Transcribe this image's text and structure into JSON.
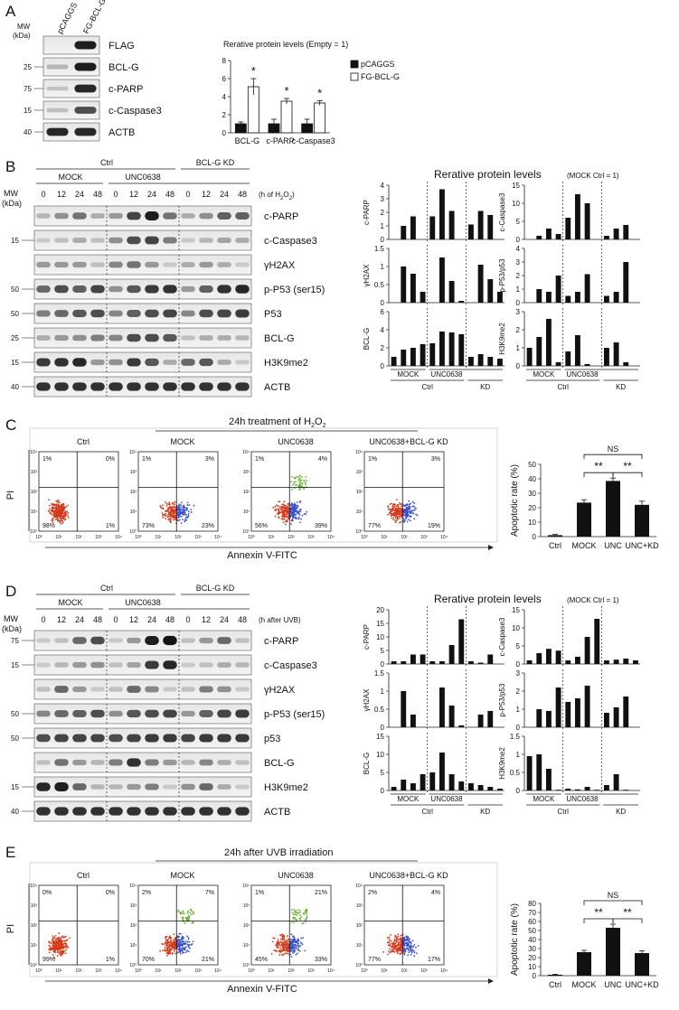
{
  "panels": {
    "A": {
      "letter": "A",
      "mw_label": "MW",
      "kda_label": "(kDa)",
      "lane_labels": [
        "pCAGGS",
        "FG-BCL-G"
      ],
      "blots": [
        {
          "mw": "",
          "label": "FLAG"
        },
        {
          "mw": "25",
          "label": "BCL-G"
        },
        {
          "mw": "75",
          "label": "c-PARP"
        },
        {
          "mw": "15",
          "label": "c-Caspase3"
        },
        {
          "mw": "40",
          "label": "ACTB"
        }
      ]
    },
    "B": {
      "letter": "B",
      "mw_label": "MW",
      "kda_label": "(kDa)",
      "group_ctrl": "Ctrl",
      "group_kd": "BCL-G KD",
      "sub_mock": "MOCK",
      "sub_unc": "UNC0638",
      "time_points": [
        "0",
        "12",
        "24",
        "48",
        "0",
        "12",
        "24",
        "48",
        "0",
        "12",
        "24",
        "48"
      ],
      "time_unit_pre": "(h of H",
      "time_unit_sub": "2",
      "time_unit_mid": "O",
      "time_unit_sub2": "2",
      "time_unit_post": ")",
      "blots": [
        {
          "mw": "",
          "label": "c-PARP"
        },
        {
          "mw": "15",
          "label": "c-Caspase3"
        },
        {
          "mw": "",
          "label": "γH2AX"
        },
        {
          "mw": "50",
          "label": "p-P53 (ser15)"
        },
        {
          "mw": "50",
          "label": "P53"
        },
        {
          "mw": "25",
          "label": "BCL-G"
        },
        {
          "mw": "15",
          "label": "H3K9me2"
        },
        {
          "mw": "40",
          "label": "ACTB"
        }
      ]
    },
    "C": {
      "letter": "C",
      "treatment_pre": "24h treatment of H",
      "treatment_sub": "2",
      "treatment_mid": "O",
      "treatment_sub2": "2",
      "xaxis": "Annexin V-FITC",
      "yaxis": "PI",
      "plots": [
        {
          "title": "Ctrl",
          "ul": "1%",
          "ur": "0%",
          "ll": "98%",
          "lr": "1%"
        },
        {
          "title": "MOCK",
          "ul": "1%",
          "ur": "3%",
          "ll": "73%",
          "lr": "23%"
        },
        {
          "title": "UNC0638",
          "ul": "1%",
          "ur": "4%",
          "ll": "56%",
          "lr": "39%"
        },
        {
          "title": "UNC0638+BCL-G KD",
          "ul": "1%",
          "ur": "3%",
          "ll": "77%",
          "lr": "19%"
        }
      ]
    },
    "D": {
      "letter": "D",
      "mw_label": "MW",
      "kda_label": "(kDa)",
      "group_ctrl": "Ctrl",
      "group_kd": "BCL-G KD",
      "sub_mock": "MOCK",
      "sub_unc": "UNC0638",
      "time_points": [
        "0",
        "12",
        "24",
        "48",
        "0",
        "12",
        "24",
        "48",
        "0",
        "12",
        "24",
        "48"
      ],
      "time_unit": "(h after UVB)",
      "blots": [
        {
          "mw": "75",
          "label": "c-PARP"
        },
        {
          "mw": "15",
          "label": "c-Caspase3"
        },
        {
          "mw": "",
          "label": "γH2AX"
        },
        {
          "mw": "50",
          "label": "p-P53 (ser15)"
        },
        {
          "mw": "50",
          "label": "p53"
        },
        {
          "mw": "",
          "label": "BCL-G"
        },
        {
          "mw": "15",
          "label": "H3K9me2"
        },
        {
          "mw": "40",
          "label": "ACTB"
        }
      ]
    },
    "E": {
      "letter": "E",
      "treatment": "24h after UVB irradiation",
      "xaxis": "Annexin V-FITC",
      "yaxis": "PI",
      "plots": [
        {
          "title": "Ctrl",
          "ul": "0%",
          "ur": "0%",
          "ll": "99%",
          "lr": "1%"
        },
        {
          "title": "MOCK",
          "ul": "2%",
          "ur": "7%",
          "ll": "70%",
          "lr": "21%"
        },
        {
          "title": "UNC0638",
          "ul": "1%",
          "ur": "21%",
          "ll": "45%",
          "lr": "33%"
        },
        {
          "title": "UNC0638+BCL-G KD",
          "ul": "2%",
          "ur": "4%",
          "ll": "77%",
          "lr": "17%"
        }
      ]
    }
  },
  "flow_ticks": [
    "10⁰",
    "10¹",
    "10²",
    "10³",
    "10⁴"
  ],
  "chart_data": [
    {
      "id": "A-bar",
      "type": "bar",
      "title": "Rerative protein levels (Empty = 1)",
      "categories": [
        "BCL-G",
        "c-PARP",
        "c-Caspase3"
      ],
      "series": [
        {
          "name": "pCAGGS",
          "values": [
            1,
            1,
            1
          ],
          "errors": [
            0.2,
            0.5,
            0.5
          ]
        },
        {
          "name": "FG-BCL-G",
          "values": [
            5.1,
            3.5,
            3.3
          ],
          "errors": [
            0.9,
            0.3,
            0.25
          ]
        }
      ],
      "annotations": [
        "*",
        "*",
        "*"
      ],
      "ylim": [
        0,
        8
      ],
      "yticks": [
        "0",
        "2",
        "4",
        "6",
        "8"
      ]
    },
    {
      "id": "B-quant",
      "type": "bar",
      "title": "Rerative protein levels",
      "title_note": "(MOCK Ctrl = 1)",
      "group_labels": [
        "MOCK",
        "UNC0638",
        "KD"
      ],
      "ctrl_label": "Ctrl",
      "panels": [
        {
          "ylabel": "c-PARP",
          "ylim": [
            0,
            4
          ],
          "yticks": [
            "0",
            "1",
            "2",
            "3",
            "4"
          ],
          "values": [
            0,
            1,
            1.7,
            0,
            1.7,
            3.7,
            2.1,
            0,
            1.1,
            2.1,
            1.8,
            0
          ]
        },
        {
          "ylabel": "c-Caspase3",
          "ylim": [
            0,
            15
          ],
          "yticks": [
            "0",
            "5",
            "10",
            "15"
          ],
          "values": [
            0,
            1,
            3,
            1.5,
            6,
            12.5,
            10,
            0,
            1,
            3,
            4,
            0
          ]
        },
        {
          "ylabel": "γH2AX",
          "ylim": [
            0,
            1.5
          ],
          "yticks": [
            "0",
            "0.5",
            "1",
            "1.5"
          ],
          "values": [
            0,
            1,
            0.8,
            0.3,
            0,
            1.25,
            0.6,
            0.05,
            0,
            1.05,
            0.65,
            0.3
          ]
        },
        {
          "ylabel": "p-P53/p53",
          "ylim": [
            0,
            4
          ],
          "yticks": [
            "0",
            "1",
            "2",
            "3",
            "4"
          ],
          "values": [
            0,
            1,
            0.8,
            2,
            0.5,
            0.8,
            2.1,
            0,
            0.5,
            0.8,
            3,
            0
          ]
        },
        {
          "ylabel": "BCL-G",
          "ylim": [
            0,
            6
          ],
          "yticks": [
            "0",
            "2",
            "4",
            "6"
          ],
          "values": [
            1,
            1.8,
            2,
            2.4,
            2.5,
            3.8,
            3.7,
            3.5,
            1,
            1.3,
            1,
            0.8
          ]
        },
        {
          "ylabel": "H3K9me2",
          "ylim": [
            0,
            3
          ],
          "yticks": [
            "0",
            "1",
            "2",
            "3"
          ],
          "values": [
            1,
            1.6,
            2.6,
            0.2,
            0.8,
            1.7,
            0.1,
            0,
            1,
            1.3,
            0.2,
            0
          ]
        }
      ]
    },
    {
      "id": "C-bar",
      "type": "bar",
      "ylabel": "Apoptotic rate (%)",
      "categories": [
        "Ctrl",
        "MOCK",
        "UNC",
        "UNC+KD"
      ],
      "values": [
        1,
        23.5,
        38.5,
        22
      ],
      "errors": [
        0.5,
        2,
        2,
        2.5
      ],
      "ylim": [
        0,
        50
      ],
      "yticks": [
        "0",
        "10",
        "20",
        "30",
        "40",
        "50"
      ],
      "significance": [
        {
          "label": "**",
          "from": "MOCK",
          "to": "UNC"
        },
        {
          "label": "**",
          "from": "UNC",
          "to": "UNC+KD"
        },
        {
          "label": "NS",
          "from": "MOCK",
          "to": "UNC+KD"
        }
      ]
    },
    {
      "id": "D-quant",
      "type": "bar",
      "title": "Rerative protein levels",
      "title_note": "(MOCK Ctrl = 1)",
      "group_labels": [
        "MOCK",
        "UNC0638",
        "KD"
      ],
      "ctrl_label": "Ctrl",
      "panels": [
        {
          "ylabel": "c-PARP",
          "ylim": [
            0,
            20
          ],
          "yticks": [
            "0",
            "5",
            "10",
            "15",
            "20"
          ],
          "values": [
            1,
            1,
            3.5,
            3.5,
            1,
            1,
            7,
            16.5,
            1,
            0.5,
            3.5,
            0
          ]
        },
        {
          "ylabel": "c-Caspase3",
          "ylim": [
            0,
            15
          ],
          "yticks": [
            "0",
            "5",
            "10",
            "15"
          ],
          "values": [
            1,
            3,
            4.2,
            3.7,
            1,
            2,
            7.5,
            12.5,
            1,
            1.2,
            1.5,
            1
          ]
        },
        {
          "ylabel": "γH2AX",
          "ylim": [
            0,
            1.5
          ],
          "yticks": [
            "0",
            "0.5",
            "1",
            "1.5"
          ],
          "values": [
            0,
            1,
            0.35,
            0,
            0,
            1.1,
            0.6,
            0.05,
            0,
            0.35,
            0.45,
            0
          ]
        },
        {
          "ylabel": "p-P53/p53",
          "ylim": [
            0,
            3
          ],
          "yticks": [
            "0",
            "1",
            "2",
            "3"
          ],
          "values": [
            0,
            1,
            0.9,
            2.2,
            1.4,
            1.6,
            2.3,
            0,
            0.8,
            1.1,
            1.7,
            0
          ]
        },
        {
          "ylabel": "BCL-G",
          "ylim": [
            0,
            15
          ],
          "yticks": [
            "0",
            "5",
            "10",
            "15"
          ],
          "values": [
            1,
            3,
            2,
            4.5,
            5,
            10.5,
            4.5,
            2.5,
            2,
            1.5,
            1,
            0.5
          ]
        },
        {
          "ylabel": "H3K9me2",
          "ylim": [
            0,
            1.5
          ],
          "yticks": [
            "0",
            "0.5",
            "1",
            "1.5"
          ],
          "values": [
            0.95,
            1,
            0.6,
            0.02,
            0.05,
            0.03,
            0.1,
            0.02,
            0.15,
            0.45,
            0.02,
            0
          ]
        }
      ]
    },
    {
      "id": "E-bar",
      "type": "bar",
      "ylabel": "Apoptotic rate (%)",
      "categories": [
        "Ctrl",
        "MOCK",
        "UNC",
        "UNC+KD"
      ],
      "values": [
        1,
        26,
        53,
        25
      ],
      "errors": [
        0.5,
        2,
        4,
        2.5
      ],
      "ylim": [
        0,
        80
      ],
      "yticks": [
        "0",
        "10",
        "20",
        "30",
        "40",
        "50",
        "60",
        "70",
        "80"
      ],
      "significance": [
        {
          "label": "**",
          "from": "MOCK",
          "to": "UNC"
        },
        {
          "label": "**",
          "from": "UNC",
          "to": "UNC+KD"
        },
        {
          "label": "NS",
          "from": "MOCK",
          "to": "UNC+KD"
        }
      ]
    }
  ],
  "colors": {
    "bar_dark": "#111111",
    "bar_light": "#ffffff",
    "flow_live": "#d23a1a",
    "flow_early": "#3a4fc8",
    "flow_late": "#66b030"
  }
}
